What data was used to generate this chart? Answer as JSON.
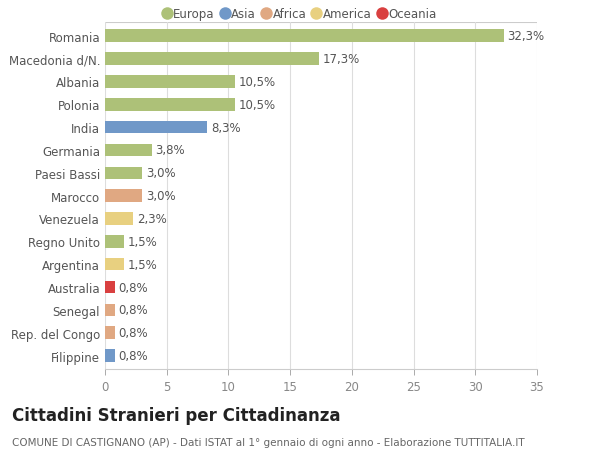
{
  "countries": [
    "Romania",
    "Macedonia d/N.",
    "Albania",
    "Polonia",
    "India",
    "Germania",
    "Paesi Bassi",
    "Marocco",
    "Venezuela",
    "Regno Unito",
    "Argentina",
    "Australia",
    "Senegal",
    "Rep. del Congo",
    "Filippine"
  ],
  "values": [
    32.3,
    17.3,
    10.5,
    10.5,
    8.3,
    3.8,
    3.0,
    3.0,
    2.3,
    1.5,
    1.5,
    0.8,
    0.8,
    0.8,
    0.8
  ],
  "labels": [
    "32,3%",
    "17,3%",
    "10,5%",
    "10,5%",
    "8,3%",
    "3,8%",
    "3,0%",
    "3,0%",
    "2,3%",
    "1,5%",
    "1,5%",
    "0,8%",
    "0,8%",
    "0,8%",
    "0,8%"
  ],
  "colors": [
    "#adc178",
    "#adc178",
    "#adc178",
    "#adc178",
    "#7098c8",
    "#adc178",
    "#adc178",
    "#e0a882",
    "#e8d080",
    "#adc178",
    "#e8d080",
    "#d94040",
    "#e0a882",
    "#e0a882",
    "#7098c8"
  ],
  "legend_labels": [
    "Europa",
    "Asia",
    "Africa",
    "America",
    "Oceania"
  ],
  "legend_colors": [
    "#adc178",
    "#7098c8",
    "#e0a882",
    "#e8d080",
    "#d94040"
  ],
  "title": "Cittadini Stranieri per Cittadinanza",
  "subtitle": "COMUNE DI CASTIGNANO (AP) - Dati ISTAT al 1° gennaio di ogni anno - Elaborazione TUTTITALIA.IT",
  "xlim": [
    0,
    35
  ],
  "xticks": [
    0,
    5,
    10,
    15,
    20,
    25,
    30,
    35
  ],
  "bg_color": "#ffffff",
  "plot_bg_color": "#ffffff",
  "grid_color": "#dddddd",
  "bar_height": 0.55,
  "label_fontsize": 8.5,
  "tick_fontsize": 8.5,
  "title_fontsize": 12,
  "subtitle_fontsize": 7.5
}
